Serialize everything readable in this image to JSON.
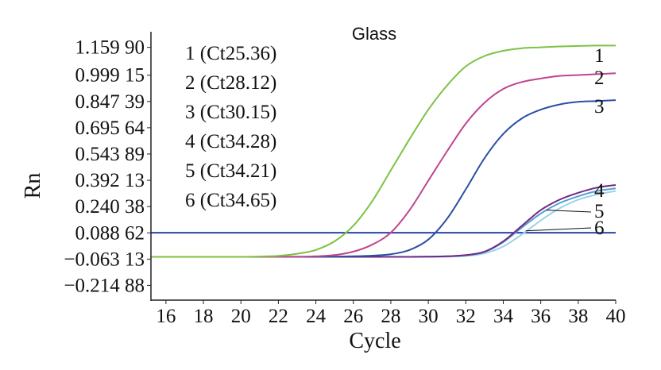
{
  "chart_data": {
    "type": "line",
    "title": "Glass",
    "xlabel": "Cycle",
    "ylabel": "Rn",
    "xlim": [
      15.2,
      40
    ],
    "ylim": [
      -0.3,
      1.25
    ],
    "x_ticks": [
      "16",
      "18",
      "20",
      "22",
      "24",
      "26",
      "28",
      "30",
      "32",
      "34",
      "36",
      "38",
      "40"
    ],
    "y_ticks": [
      {
        "label": "1.159 90",
        "value": 1.1599
      },
      {
        "label": "0.999 15",
        "value": 0.99915
      },
      {
        "label": "0.847 39",
        "value": 0.84739
      },
      {
        "label": "0.695 64",
        "value": 0.69564
      },
      {
        "label": "0.543 89",
        "value": 0.54389
      },
      {
        "label": "0.392 13",
        "value": 0.39213
      },
      {
        "label": "0.240 38",
        "value": 0.24038
      },
      {
        "label": "0.088 62",
        "value": 0.08862
      },
      {
        "label": "−0.063 13",
        "value": -0.06313
      },
      {
        "label": "−0.214 88",
        "value": -0.21488
      }
    ],
    "threshold": {
      "value": 0.089,
      "color": "#2a44a8"
    },
    "legend_position": "top-left",
    "legend": [
      "1 (Ct25.36)",
      "2 (Ct28.12)",
      "3 (Ct30.15)",
      "4 (Ct34.28)",
      "5 (Ct34.21)",
      "6 (Ct34.65)"
    ],
    "x": [
      15.2,
      16,
      17,
      18,
      19,
      20,
      21,
      22,
      23,
      24,
      25,
      26,
      27,
      28,
      29,
      30,
      31,
      32,
      33,
      34,
      35,
      36,
      37,
      38,
      39,
      40
    ],
    "series": [
      {
        "label": "1",
        "color": "#7cc242",
        "values": [
          -0.05,
          -0.05,
          -0.05,
          -0.05,
          -0.05,
          -0.05,
          -0.048,
          -0.044,
          -0.032,
          -0.01,
          0.04,
          0.13,
          0.27,
          0.45,
          0.63,
          0.8,
          0.94,
          1.05,
          1.11,
          1.14,
          1.155,
          1.16,
          1.165,
          1.168,
          1.17,
          1.17
        ]
      },
      {
        "label": "2",
        "color": "#c0448f",
        "values": [
          -0.05,
          -0.05,
          -0.05,
          -0.05,
          -0.05,
          -0.05,
          -0.05,
          -0.05,
          -0.049,
          -0.047,
          -0.04,
          -0.02,
          0.02,
          0.09,
          0.22,
          0.39,
          0.56,
          0.72,
          0.84,
          0.92,
          0.96,
          0.98,
          0.995,
          1.0,
          1.005,
          1.01
        ]
      },
      {
        "label": "3",
        "color": "#2c4fa3",
        "values": [
          -0.05,
          -0.05,
          -0.05,
          -0.05,
          -0.05,
          -0.05,
          -0.05,
          -0.05,
          -0.05,
          -0.05,
          -0.049,
          -0.047,
          -0.043,
          -0.035,
          -0.01,
          0.05,
          0.17,
          0.34,
          0.52,
          0.66,
          0.75,
          0.8,
          0.83,
          0.845,
          0.85,
          0.855
        ]
      },
      {
        "label": "4",
        "color": "#6e2a86",
        "values": [
          -0.05,
          -0.05,
          -0.05,
          -0.05,
          -0.05,
          -0.05,
          -0.05,
          -0.05,
          -0.05,
          -0.05,
          -0.05,
          -0.05,
          -0.05,
          -0.05,
          -0.05,
          -0.049,
          -0.047,
          -0.04,
          -0.02,
          0.04,
          0.13,
          0.22,
          0.28,
          0.32,
          0.35,
          0.365
        ]
      },
      {
        "label": "5",
        "color": "#5a9fcf",
        "values": [
          -0.05,
          -0.05,
          -0.05,
          -0.05,
          -0.05,
          -0.05,
          -0.05,
          -0.05,
          -0.05,
          -0.05,
          -0.05,
          -0.05,
          -0.05,
          -0.05,
          -0.05,
          -0.049,
          -0.047,
          -0.041,
          -0.022,
          0.035,
          0.12,
          0.2,
          0.26,
          0.3,
          0.33,
          0.345
        ]
      },
      {
        "label": "6",
        "color": "#9ad3e8",
        "values": [
          -0.05,
          -0.05,
          -0.05,
          -0.05,
          -0.05,
          -0.05,
          -0.05,
          -0.05,
          -0.05,
          -0.05,
          -0.05,
          -0.05,
          -0.05,
          -0.05,
          -0.05,
          -0.05,
          -0.049,
          -0.045,
          -0.03,
          0.01,
          0.08,
          0.16,
          0.23,
          0.28,
          0.31,
          0.33
        ]
      }
    ]
  }
}
